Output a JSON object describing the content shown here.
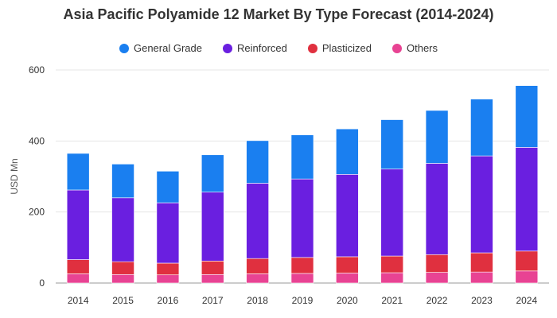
{
  "chart_data": {
    "type": "bar",
    "stacked": true,
    "title": "Asia Pacific Polyamide 12 Market By Type Forecast (2014-2024)",
    "ylabel": "USD Mn",
    "xlabel": "",
    "ylim": [
      0,
      600
    ],
    "yticks": [
      0,
      200,
      400,
      600
    ],
    "grid": true,
    "legend_position": "top",
    "categories": [
      "2014",
      "2015",
      "2016",
      "2017",
      "2018",
      "2019",
      "2020",
      "2021",
      "2022",
      "2023",
      "2024"
    ],
    "series": [
      {
        "name": "Others",
        "color": "#e84393",
        "values": [
          26,
          24,
          23,
          24,
          26,
          27,
          28,
          29,
          30,
          31,
          34
        ]
      },
      {
        "name": "Plasticized",
        "color": "#e0303f",
        "values": [
          40,
          36,
          33,
          38,
          43,
          45,
          46,
          47,
          50,
          54,
          56
        ]
      },
      {
        "name": "Reinforced",
        "color": "#6a1fe0",
        "values": [
          196,
          180,
          170,
          194,
          212,
          221,
          232,
          245,
          257,
          273,
          292
        ]
      },
      {
        "name": "General Grade",
        "color": "#1a7ff0",
        "values": [
          103,
          95,
          89,
          105,
          120,
          124,
          128,
          139,
          149,
          160,
          174
        ]
      }
    ],
    "legend_order": [
      "General Grade",
      "Reinforced",
      "Plasticized",
      "Others"
    ]
  }
}
